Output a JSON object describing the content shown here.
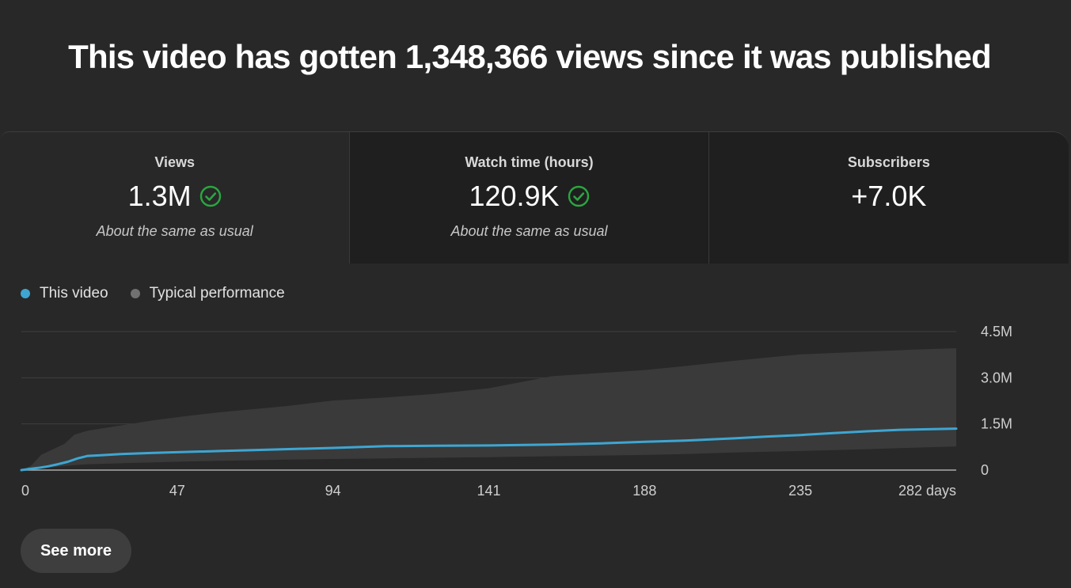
{
  "headline": "This video has gotten 1,348,366 views since it was published",
  "metrics": [
    {
      "label": "Views",
      "value": "1.3M",
      "note": "About the same as usual",
      "check": true
    },
    {
      "label": "Watch time (hours)",
      "value": "120.9K",
      "note": "About the same as usual",
      "check": true
    },
    {
      "label": "Subscribers",
      "value": "+7.0K",
      "note": "",
      "check": false
    }
  ],
  "legend": {
    "this_video": "This video",
    "typical": "Typical performance"
  },
  "colors": {
    "this_video": "#3ea6d2",
    "typical_dot": "#717171",
    "typical_band": "#3a3a3a",
    "check": "#2ba640"
  },
  "see_more_label": "See more",
  "chart_data": {
    "type": "area",
    "title": "",
    "xlabel": "",
    "ylabel": "",
    "x_ticks": [
      "0",
      "47",
      "94",
      "141",
      "188",
      "235",
      "282 days"
    ],
    "x_tick_values": [
      0,
      47,
      94,
      141,
      188,
      235,
      282
    ],
    "y_ticks": [
      "0",
      "1.5M",
      "3.0M",
      "4.5M"
    ],
    "y_tick_values": [
      0,
      1500000,
      3000000,
      4500000
    ],
    "xlim": [
      0,
      282
    ],
    "ylim": [
      0,
      4500000
    ],
    "grid": true,
    "y_axis_side": "right",
    "legend_position": "top-left",
    "series": [
      {
        "name": "This video",
        "type": "line",
        "x": [
          0,
          2,
          5,
          8,
          11,
          14,
          17,
          20,
          24,
          30,
          40,
          47,
          60,
          70,
          94,
          110,
          125,
          141,
          160,
          175,
          188,
          200,
          215,
          225,
          235,
          245,
          255,
          265,
          282
        ],
        "y": [
          0,
          30000,
          70000,
          120000,
          190000,
          270000,
          380000,
          460000,
          480000,
          520000,
          560000,
          580000,
          620000,
          650000,
          720000,
          780000,
          790000,
          800000,
          830000,
          870000,
          920000,
          960000,
          1030000,
          1090000,
          1140000,
          1200000,
          1260000,
          1310000,
          1348366
        ]
      },
      {
        "name": "Typical performance",
        "type": "band",
        "x": [
          0,
          3,
          6,
          10,
          13,
          16,
          20,
          30,
          40,
          50,
          60,
          70,
          80,
          94,
          110,
          125,
          141,
          160,
          188,
          200,
          215,
          235,
          255,
          270,
          282
        ],
        "upper": [
          0,
          150000,
          500000,
          700000,
          850000,
          1150000,
          1280000,
          1450000,
          1620000,
          1760000,
          1880000,
          1980000,
          2080000,
          2260000,
          2360000,
          2480000,
          2660000,
          3050000,
          3250000,
          3380000,
          3550000,
          3760000,
          3850000,
          3920000,
          3960000
        ],
        "lower": [
          0,
          20000,
          60000,
          100000,
          130000,
          160000,
          190000,
          220000,
          250000,
          280000,
          300000,
          320000,
          340000,
          360000,
          380000,
          400000,
          420000,
          450000,
          490000,
          520000,
          570000,
          620000,
          680000,
          730000,
          770000
        ]
      }
    ]
  }
}
